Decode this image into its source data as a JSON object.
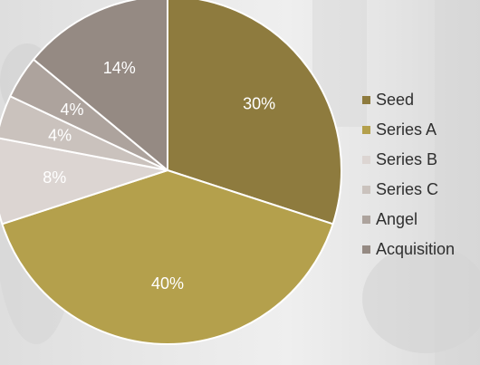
{
  "chart_data": {
    "type": "pie",
    "start_angle_deg": 0,
    "direction": "clockwise",
    "legend_position": "right",
    "slices": [
      {
        "name": "Seed",
        "value": 30,
        "label": "30%",
        "color": "#8e7b3e"
      },
      {
        "name": "Series A",
        "value": 40,
        "label": "40%",
        "color": "#b4a04c"
      },
      {
        "name": "Series B",
        "value": 8,
        "label": "8%",
        "color": "#dcd5d2"
      },
      {
        "name": "Series C",
        "value": 4,
        "label": "4%",
        "color": "#cac2bd"
      },
      {
        "name": "Angel",
        "value": 4,
        "label": "4%",
        "color": "#ada39d"
      },
      {
        "name": "Acquisition",
        "value": 14,
        "label": "14%",
        "color": "#958a83"
      }
    ]
  }
}
